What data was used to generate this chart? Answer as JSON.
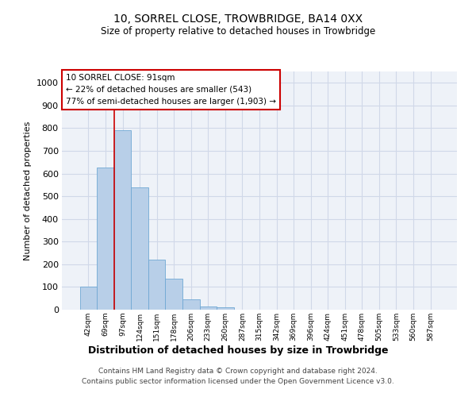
{
  "title1": "10, SORREL CLOSE, TROWBRIDGE, BA14 0XX",
  "title2": "Size of property relative to detached houses in Trowbridge",
  "xlabel": "Distribution of detached houses by size in Trowbridge",
  "ylabel": "Number of detached properties",
  "footer1": "Contains HM Land Registry data © Crown copyright and database right 2024.",
  "footer2": "Contains public sector information licensed under the Open Government Licence v3.0.",
  "annotation_line1": "10 SORREL CLOSE: 91sqm",
  "annotation_line2": "← 22% of detached houses are smaller (543)",
  "annotation_line3": "77% of semi-detached houses are larger (1,903) →",
  "bar_color": "#b8cfe8",
  "bar_edge_color": "#6fa8d4",
  "vline_color": "#cc0000",
  "annotation_box_color": "#cc0000",
  "grid_color": "#d0d8e8",
  "background_color": "#eef2f8",
  "categories": [
    "42sqm",
    "69sqm",
    "97sqm",
    "124sqm",
    "151sqm",
    "178sqm",
    "206sqm",
    "233sqm",
    "260sqm",
    "287sqm",
    "315sqm",
    "342sqm",
    "369sqm",
    "396sqm",
    "424sqm",
    "451sqm",
    "478sqm",
    "505sqm",
    "533sqm",
    "560sqm",
    "587sqm"
  ],
  "values": [
    100,
    625,
    790,
    540,
    220,
    135,
    45,
    15,
    10,
    0,
    0,
    0,
    0,
    0,
    0,
    0,
    0,
    0,
    0,
    0,
    0
  ],
  "ylim": [
    0,
    1050
  ],
  "yticks": [
    0,
    100,
    200,
    300,
    400,
    500,
    600,
    700,
    800,
    900,
    1000
  ],
  "vline_x": 1.5
}
